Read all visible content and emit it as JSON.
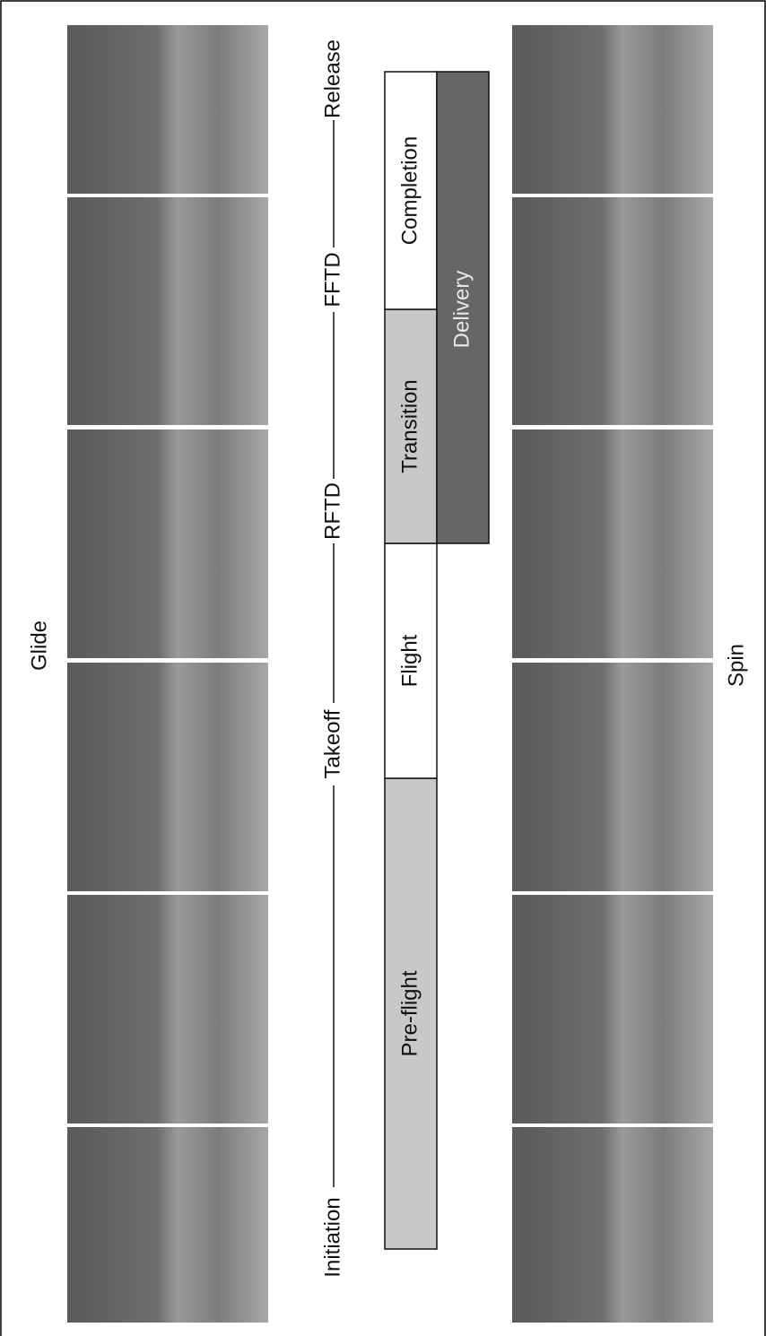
{
  "labels": {
    "top": "Glide",
    "bottom": "Spin"
  },
  "events": [
    "Initiation",
    "Takeoff",
    "RFTD",
    "FFTD",
    "Release"
  ],
  "phases": [
    "Pre-flight",
    "Flight",
    "Transition",
    "Completion"
  ],
  "delivery": "Delivery"
}
